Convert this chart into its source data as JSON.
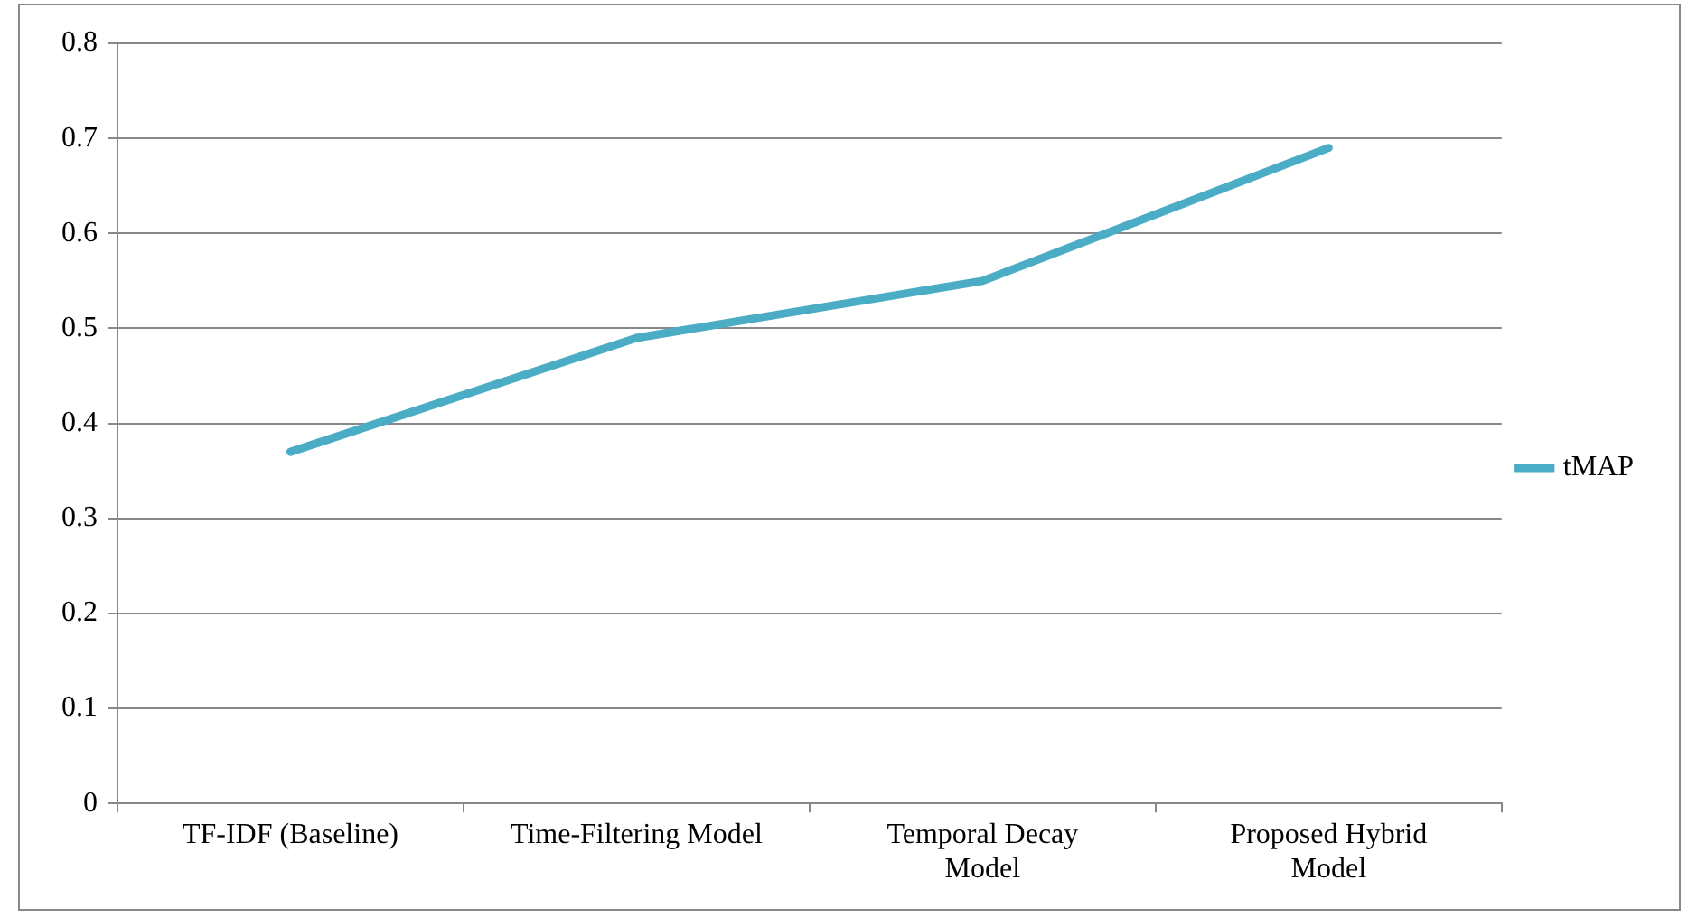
{
  "chart_data": {
    "type": "line",
    "categories": [
      "TF-IDF (Baseline)",
      "Time-Filtering Model",
      "Temporal Decay Model",
      "Proposed Hybrid Model"
    ],
    "series": [
      {
        "name": "tMAP",
        "color": "#4bacc6",
        "values": [
          0.37,
          0.49,
          0.55,
          0.69
        ]
      }
    ],
    "ylim": [
      0,
      0.8
    ],
    "yticks": [
      0,
      0.1,
      0.2,
      0.3,
      0.4,
      0.5,
      0.6,
      0.7,
      0.8
    ],
    "grid": "y",
    "legend": "right",
    "marker": "none",
    "line_style": "solid"
  }
}
